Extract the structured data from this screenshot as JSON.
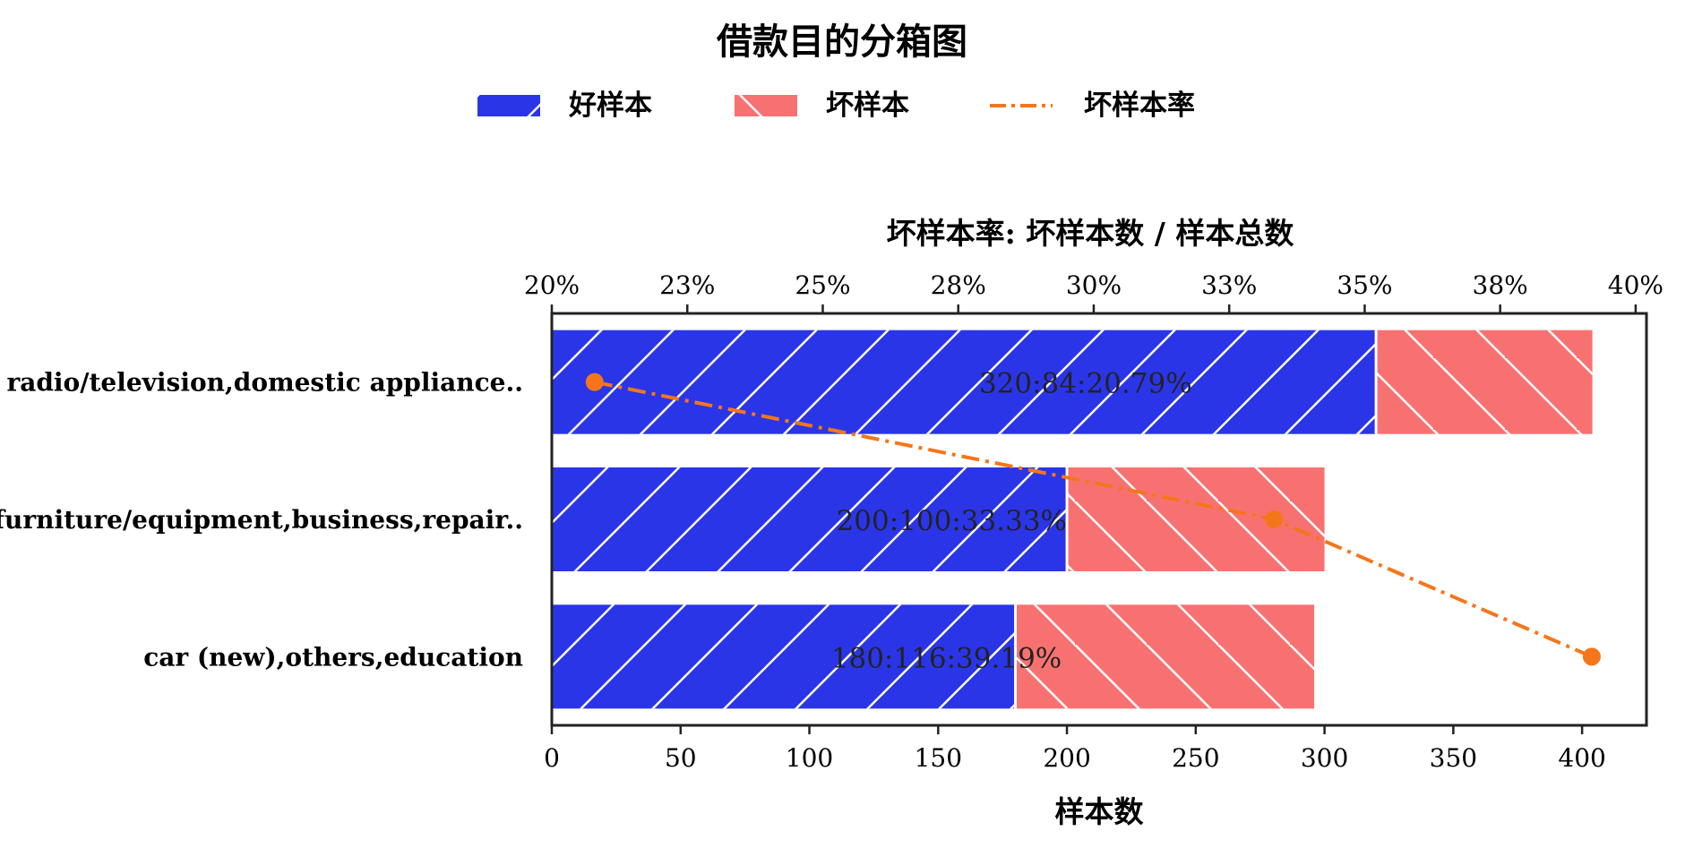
{
  "chart_data": {
    "type": "bar",
    "orientation": "horizontal",
    "stacked": true,
    "title": "借款目的分箱图",
    "categories": [
      "radio/television,domestic appliance..",
      "furniture/equipment,business,repair..",
      "car (new),others,education"
    ],
    "series": [
      {
        "name": "好样本",
        "values": [
          320,
          200,
          180
        ],
        "color": "#2a35e8",
        "hatch": "/"
      },
      {
        "name": "坏样本",
        "values": [
          84,
          100,
          116
        ],
        "color": "#f87171",
        "hatch": "\\"
      },
      {
        "name": "坏样本率",
        "type": "line",
        "axis": "top",
        "values": [
          20.79,
          33.33,
          39.19
        ],
        "color": "#f5761a",
        "linestyle": "dashdot"
      }
    ],
    "data_labels": [
      "320:84:20.79%",
      "200:100:33.33%",
      "180:116:39.19%"
    ],
    "xlabel": "样本数",
    "x_ticks": [
      "0",
      "50",
      "100",
      "150",
      "200",
      "250",
      "300",
      "350",
      "400"
    ],
    "xlim": [
      0,
      425
    ],
    "x2label": "坏样本率: 坏样本数 / 样本总数",
    "x2_ticks": [
      "20%",
      "23%",
      "25%",
      "28%",
      "30%",
      "33%",
      "35%",
      "38%",
      "40%"
    ],
    "x2lim": [
      20,
      40.2
    ],
    "legend_position": "top-center",
    "grid": false
  }
}
